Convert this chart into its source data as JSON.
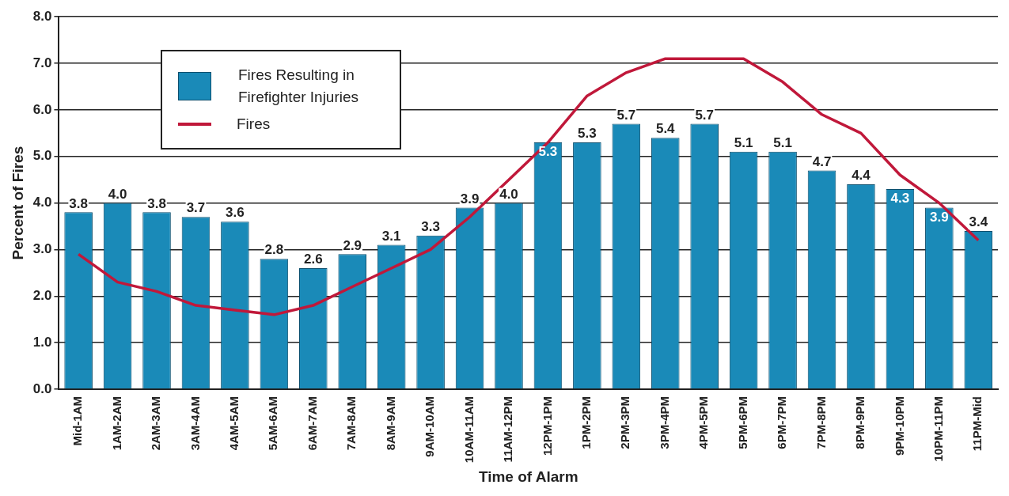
{
  "chart_data": {
    "type": "bar",
    "xlabel": "Time of Alarm",
    "ylabel": "Percent of Fires",
    "categories": [
      "Mid-1AM",
      "1AM-2AM",
      "2AM-3AM",
      "3AM-4AM",
      "4AM-5AM",
      "5AM-6AM",
      "6AM-7AM",
      "7AM-8AM",
      "8AM-9AM",
      "9AM-10AM",
      "10AM-11AM",
      "11AM-12PM",
      "12PM-1PM",
      "1PM-2PM",
      "2PM-3PM",
      "3PM-4PM",
      "4PM-5PM",
      "5PM-6PM",
      "6PM-7PM",
      "7PM-8PM",
      "8PM-9PM",
      "9PM-10PM",
      "10PM-11PM",
      "11PM-Mid"
    ],
    "series": [
      {
        "name": "Fires Resulting in Firefighter Injuries",
        "color": "#1a8ab8",
        "values": [
          3.8,
          4.0,
          3.8,
          3.7,
          3.6,
          2.8,
          2.6,
          2.9,
          3.1,
          3.3,
          3.9,
          4.0,
          5.3,
          5.3,
          5.7,
          5.4,
          5.7,
          5.1,
          5.1,
          4.7,
          4.4,
          4.3,
          3.9,
          3.4
        ],
        "value_labels": [
          "3.8",
          "4.0",
          "3.8",
          "3.7",
          "3.6",
          "2.8",
          "2.6",
          "2.9",
          "3.1",
          "3.3",
          "3.9",
          "4.0",
          "5.3",
          "5.3",
          "5.7",
          "5.4",
          "5.7",
          "5.1",
          "5.1",
          "4.7",
          "4.4",
          "4.3",
          "3.9",
          "3.4"
        ]
      },
      {
        "name": "Fires",
        "type": "line",
        "color": "#c0183a",
        "values": [
          2.9,
          2.3,
          2.1,
          1.8,
          1.7,
          1.6,
          1.8,
          2.2,
          2.6,
          3.0,
          3.7,
          4.5,
          5.3,
          6.3,
          6.8,
          7.1,
          7.1,
          7.1,
          6.6,
          5.9,
          5.5,
          4.6,
          4.0,
          3.2
        ]
      }
    ],
    "ylim": [
      0,
      8
    ],
    "yticks": [
      {
        "value": 0,
        "label": "0.0"
      },
      {
        "value": 1,
        "label": "1.0"
      },
      {
        "value": 2,
        "label": "2.0"
      },
      {
        "value": 3,
        "label": "3.0"
      },
      {
        "value": 4,
        "label": "4.0"
      },
      {
        "value": 5,
        "label": "5.0"
      },
      {
        "value": 6,
        "label": "6.0"
      },
      {
        "value": 7,
        "label": "7.0"
      },
      {
        "value": 8,
        "label": "8.0"
      }
    ],
    "grid": "y",
    "legend": "top left",
    "marker": "none",
    "line_style": "solid"
  }
}
